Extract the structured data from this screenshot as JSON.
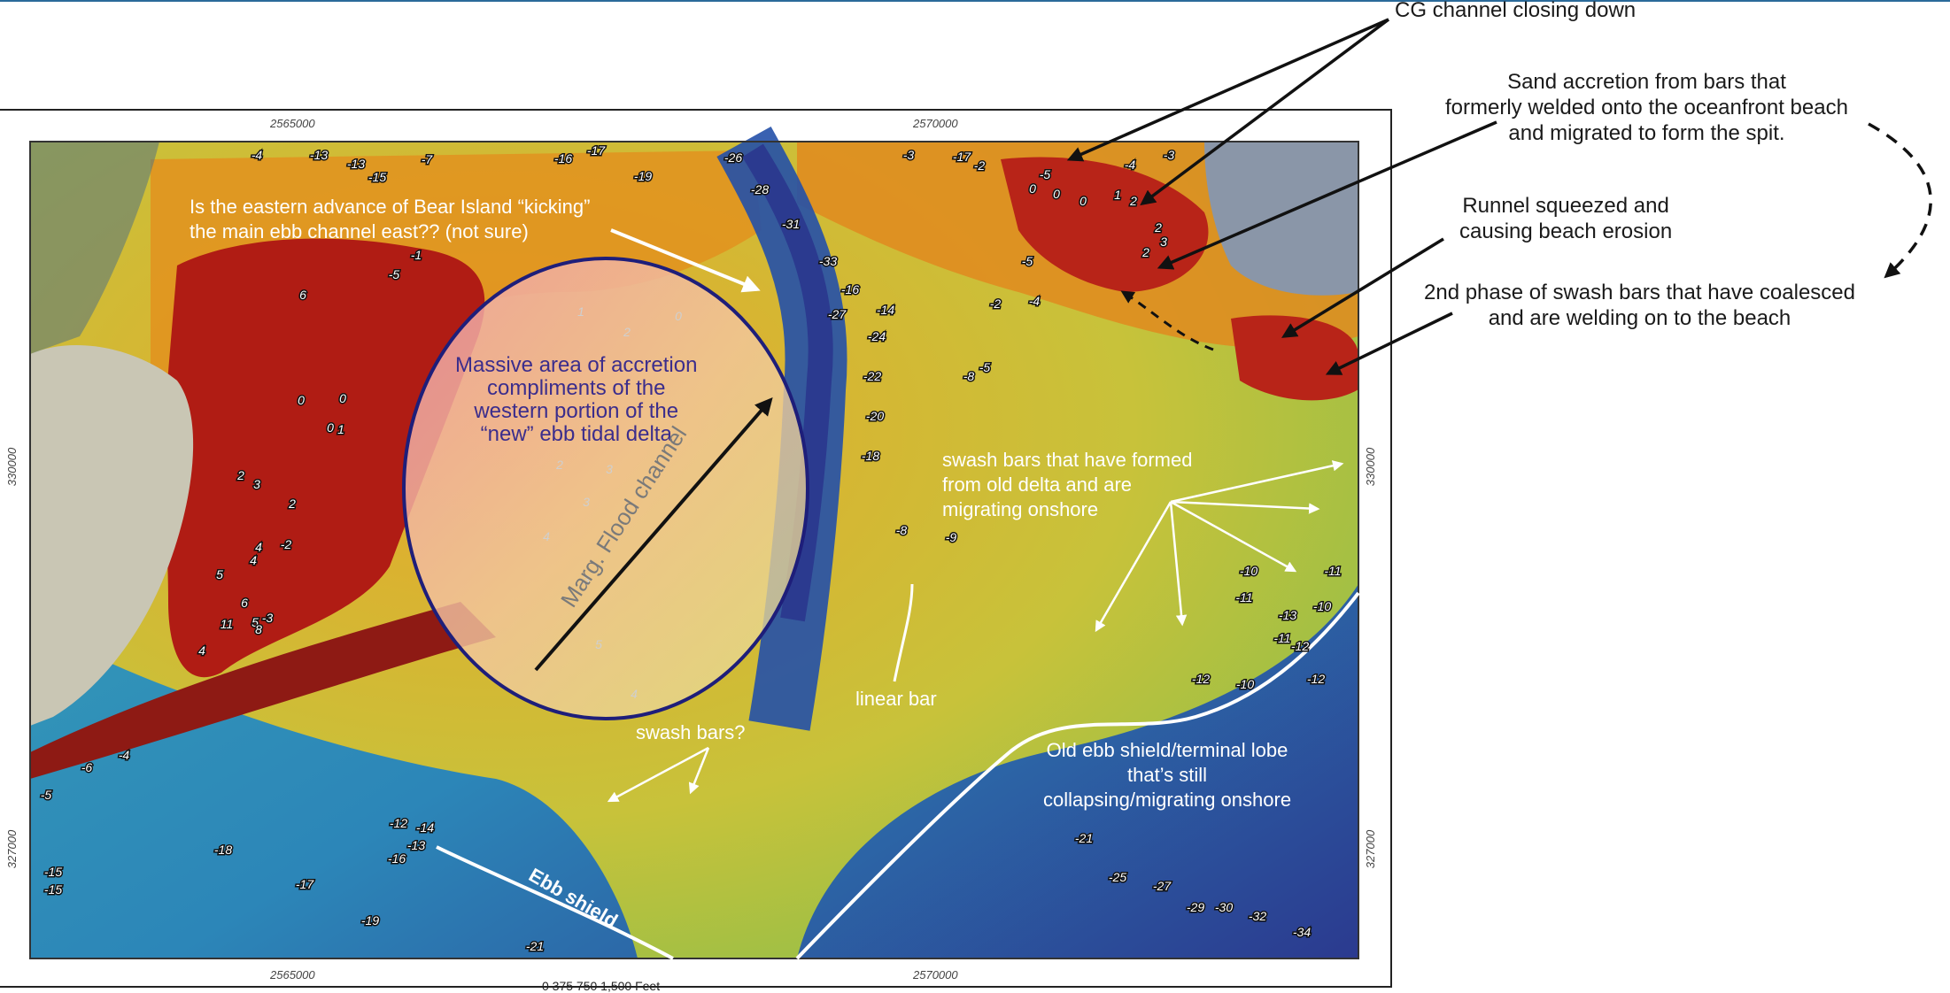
{
  "map": {
    "grid_labels": {
      "top": [
        "2565000",
        "2570000"
      ],
      "bottom": [
        "2565000",
        "2570000"
      ],
      "left": [
        "330000",
        "327000"
      ],
      "right": [
        "330000",
        "327000"
      ]
    },
    "scale_bar_text": "0    375   750          1,500 Feet"
  },
  "annotations": {
    "cg_channel": "CG channel closing down",
    "sand_accretion": [
      "Sand accretion from bars that",
      "formerly welded onto the oceanfront beach",
      "and migrated to form the spit."
    ],
    "runnel": [
      "Runnel squeezed and",
      "causing beach erosion"
    ],
    "second_phase": [
      "2nd phase of swash bars that have coalesced",
      "and are welding on to the beach"
    ],
    "bear_island": [
      "Is the eastern advance of Bear Island “kicking”",
      "the main ebb channel east??  (not sure)"
    ],
    "massive_area": [
      "Massive area of accretion",
      "compliments of the",
      "western portion of the",
      "“new” ebb tidal delta"
    ],
    "marg_flood": "Marg. Flood channel",
    "swash_bars_formed": [
      "swash bars that have formed",
      "from old delta and are",
      "migrating onshore"
    ],
    "linear_bar": "linear bar",
    "swash_bars_q": "swash bars?",
    "old_ebb_shield": [
      "Old ebb shield/terminal lobe",
      "that’s still",
      "collapsing/migrating onshore"
    ],
    "ebb_shield": "Ebb shield"
  },
  "colors": {
    "deep": "#2b3a8f",
    "channel": "#1f6fb5",
    "shallow": "#3aa8b8",
    "flat": "#c8c23a",
    "shoal": "#e08a1f",
    "high": "#b01c14",
    "ellipse_stroke": "#1e1e7a"
  },
  "depth_soundings": [
    {
      "v": "-4",
      "col": "w"
    },
    {
      "v": "-13",
      "col": "w"
    },
    {
      "v": "-13",
      "col": "w"
    },
    {
      "v": "-15",
      "col": "w"
    },
    {
      "v": "-7",
      "col": "w"
    },
    {
      "v": "-16",
      "col": "w"
    },
    {
      "v": "-17",
      "col": "w"
    },
    {
      "v": "-19",
      "col": "w"
    },
    {
      "v": "-26",
      "col": "w"
    },
    {
      "v": "-28",
      "col": "w"
    },
    {
      "v": "-31",
      "col": "w"
    },
    {
      "v": "-33",
      "col": "w"
    },
    {
      "v": "-16",
      "col": "w"
    },
    {
      "v": "-27",
      "col": "w"
    },
    {
      "v": "-14",
      "col": "w"
    },
    {
      "v": "-24",
      "col": "w"
    },
    {
      "v": "-22",
      "col": "w"
    },
    {
      "v": "-20",
      "col": "w"
    },
    {
      "v": "-18",
      "col": "w"
    },
    {
      "v": "-17",
      "col": "w"
    },
    {
      "v": "-3",
      "col": "w"
    },
    {
      "v": "-2",
      "col": "w"
    },
    {
      "v": "-5",
      "col": "w"
    },
    {
      "v": "-4",
      "col": "w"
    },
    {
      "v": "-3",
      "col": "w"
    },
    {
      "v": "0",
      "col": "w"
    },
    {
      "v": "0",
      "col": "w"
    },
    {
      "v": "0",
      "col": "w"
    },
    {
      "v": "1",
      "col": "w"
    },
    {
      "v": "2",
      "col": "w"
    },
    {
      "v": "2",
      "col": "w"
    },
    {
      "v": "3",
      "col": "w"
    },
    {
      "v": "2",
      "col": "w"
    },
    {
      "v": "-5",
      "col": "w"
    },
    {
      "v": "-4",
      "col": "w"
    },
    {
      "v": "-2",
      "col": "w"
    },
    {
      "v": "-5",
      "col": "w"
    },
    {
      "v": "-8",
      "col": "w"
    },
    {
      "v": "-8",
      "col": "w"
    },
    {
      "v": "-9",
      "col": "w"
    },
    {
      "v": "-10",
      "col": "w"
    },
    {
      "v": "-11",
      "col": "w"
    },
    {
      "v": "-12",
      "col": "w"
    },
    {
      "v": "-10",
      "col": "w"
    },
    {
      "v": "-11",
      "col": "w"
    },
    {
      "v": "-13",
      "col": "w"
    },
    {
      "v": "-12",
      "col": "w"
    },
    {
      "v": "-12",
      "col": "w"
    },
    {
      "v": "-11",
      "col": "w"
    },
    {
      "v": "-10",
      "col": "w"
    },
    {
      "v": "-21",
      "col": "w"
    },
    {
      "v": "-25",
      "col": "w"
    },
    {
      "v": "-27",
      "col": "w"
    },
    {
      "v": "-29",
      "col": "w"
    },
    {
      "v": "-30",
      "col": "w"
    },
    {
      "v": "-32",
      "col": "w"
    },
    {
      "v": "-34",
      "col": "w"
    },
    {
      "v": "-15",
      "col": "w"
    },
    {
      "v": "-18",
      "col": "w"
    },
    {
      "v": "-17",
      "col": "w"
    },
    {
      "v": "-19",
      "col": "w"
    },
    {
      "v": "-21",
      "col": "w"
    },
    {
      "v": "-16",
      "col": "w"
    },
    {
      "v": "-14",
      "col": "w"
    },
    {
      "v": "-13",
      "col": "w"
    },
    {
      "v": "-12",
      "col": "w"
    },
    {
      "v": "-15",
      "col": "w"
    },
    {
      "v": "-5",
      "col": "w"
    },
    {
      "v": "-6",
      "col": "w"
    },
    {
      "v": "-4",
      "col": "w"
    },
    {
      "v": "2",
      "col": "w"
    },
    {
      "v": "3",
      "col": "w"
    },
    {
      "v": "2",
      "col": "w"
    },
    {
      "v": "4",
      "col": "w"
    },
    {
      "v": "4",
      "col": "w"
    },
    {
      "v": "5",
      "col": "w"
    },
    {
      "v": "6",
      "col": "w"
    },
    {
      "v": "5",
      "col": "w"
    },
    {
      "v": "4",
      "col": "w"
    },
    {
      "v": "11",
      "col": "w"
    },
    {
      "v": "8",
      "col": "w"
    },
    {
      "v": "6",
      "col": "w"
    },
    {
      "v": "0",
      "col": "w"
    },
    {
      "v": "0",
      "col": "w"
    },
    {
      "v": "0",
      "col": "w"
    },
    {
      "v": "1",
      "col": "w"
    },
    {
      "v": "-2",
      "col": "w"
    },
    {
      "v": "-3",
      "col": "w"
    },
    {
      "v": "-5",
      "col": "w"
    },
    {
      "v": "-1",
      "col": "w"
    },
    {
      "v": "1",
      "col": "g"
    },
    {
      "v": "2",
      "col": "g"
    },
    {
      "v": "0",
      "col": "g"
    },
    {
      "v": "2",
      "col": "g"
    },
    {
      "v": "3",
      "col": "g"
    },
    {
      "v": "3",
      "col": "g"
    },
    {
      "v": "4",
      "col": "g"
    },
    {
      "v": "3",
      "col": "g"
    },
    {
      "v": "5",
      "col": "g"
    },
    {
      "v": "4",
      "col": "g"
    },
    {
      "v": "-4",
      "col": "g"
    },
    {
      "v": "-5",
      "col": "g"
    },
    {
      "v": "-4",
      "col": "g"
    },
    {
      "v": "-5",
      "col": "g"
    },
    {
      "v": "-6",
      "col": "g"
    }
  ]
}
